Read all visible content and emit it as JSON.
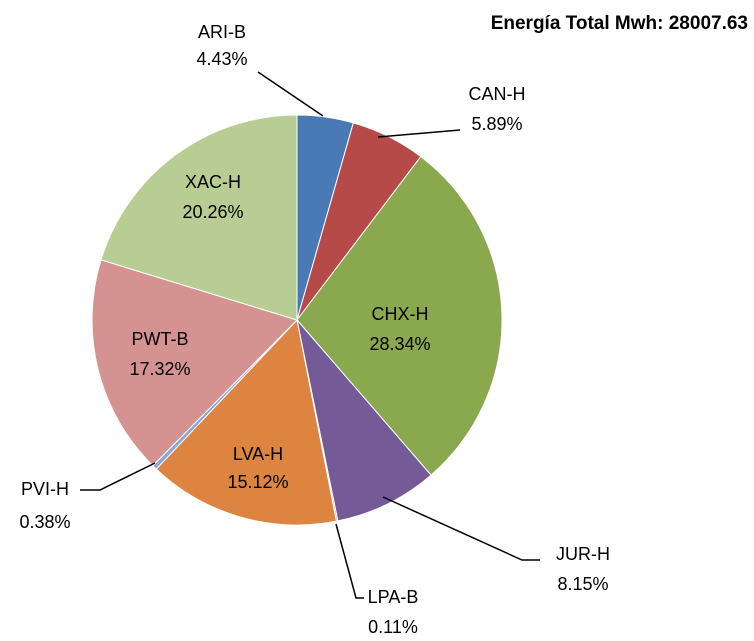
{
  "chart_data": {
    "type": "pie",
    "title": "Energía Total Mwh: 28007.63",
    "categories": [
      "ARI-B",
      "CAN-H",
      "CHX-H",
      "JUR-H",
      "LPA-B",
      "LVA-H",
      "PVI-H",
      "PWT-B",
      "XAC-H"
    ],
    "values": [
      4.43,
      5.89,
      28.34,
      8.15,
      0.11,
      15.12,
      0.38,
      17.32,
      20.26
    ],
    "value_labels": [
      "4.43%",
      "5.89%",
      "28.34%",
      "8.15%",
      "0.11%",
      "15.12%",
      "0.38%",
      "17.32%",
      "20.26%"
    ],
    "colors": [
      "#4a7ab5",
      "#b54a48",
      "#8aa84e",
      "#745a97",
      "#4aa0b8",
      "#dd8440",
      "#8ca8d8",
      "#d49391",
      "#b8cd93"
    ]
  }
}
